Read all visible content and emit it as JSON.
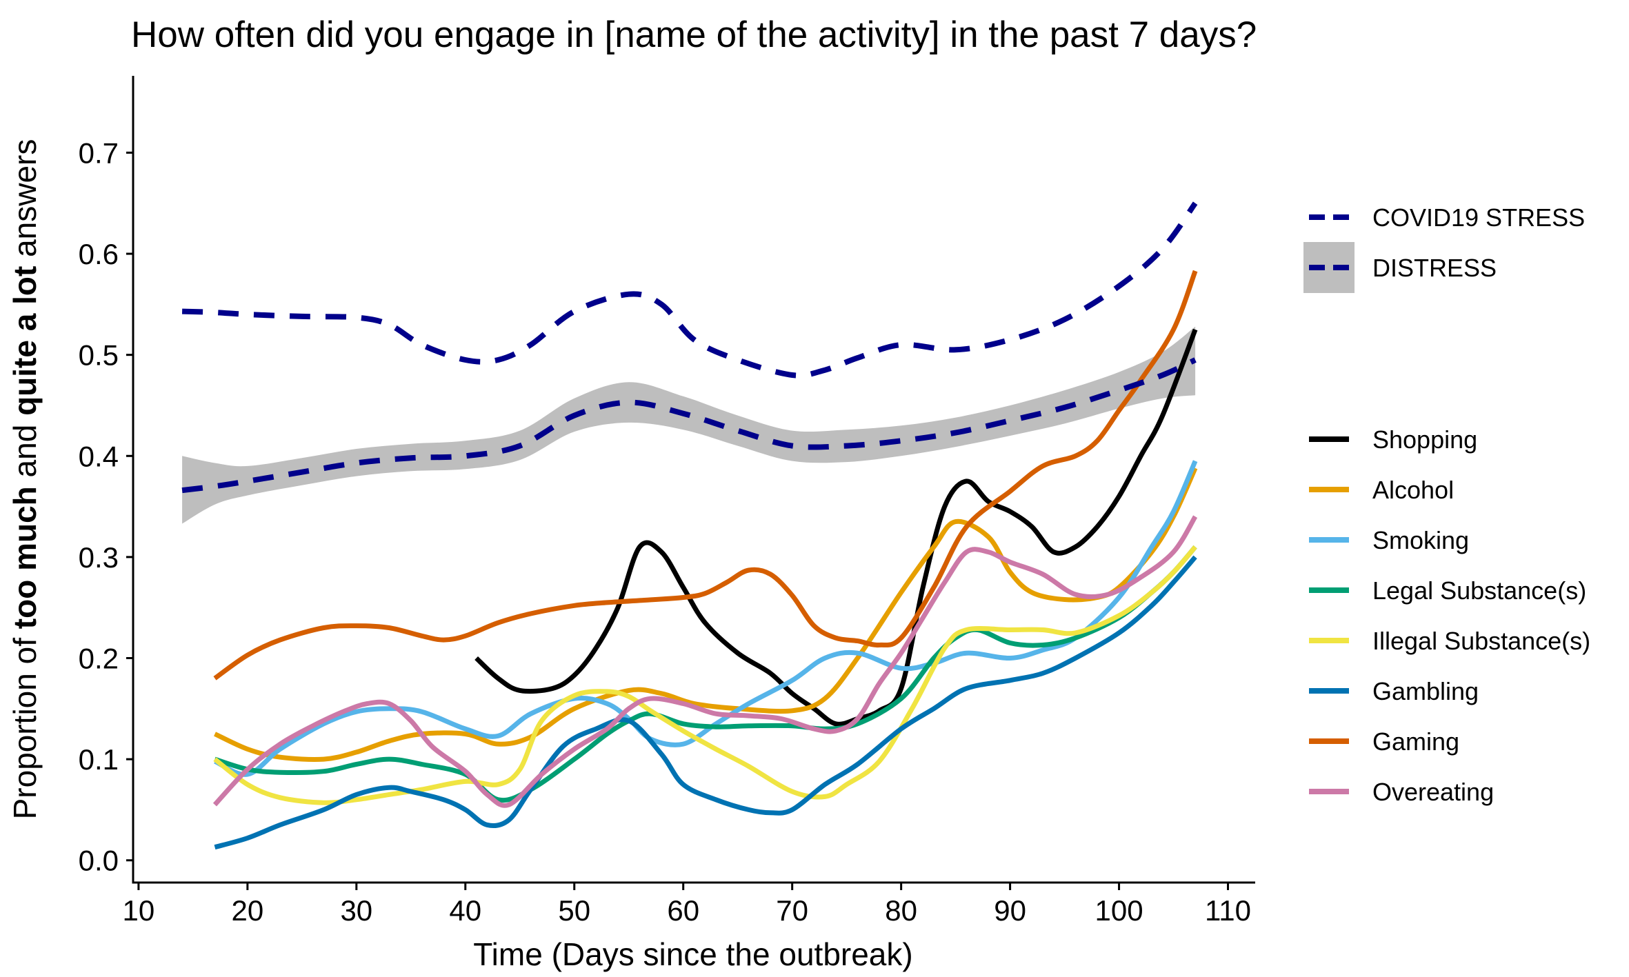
{
  "chart_data": {
    "type": "line",
    "title": "How often did you engage in [name of the activity] in the past 7 days?",
    "xlabel": "Time (Days since the outbreak)",
    "ylabel": {
      "prefix": "Proportion of ",
      "bold1": "too much",
      "mid": " and ",
      "bold2": "quite a lot",
      "suffix": " answers"
    },
    "xlim": [
      9.5,
      112.5
    ],
    "ylim": [
      -0.022,
      0.776
    ],
    "x_ticks": [
      10,
      20,
      30,
      40,
      50,
      60,
      70,
      80,
      90,
      100,
      110
    ],
    "y_ticks": [
      0.0,
      0.1,
      0.2,
      0.3,
      0.4,
      0.5,
      0.6,
      0.7
    ],
    "y_tick_labels": [
      "0.0",
      "0.1",
      "0.2",
      "0.3",
      "0.4",
      "0.5",
      "0.6",
      "0.7"
    ],
    "grid": false,
    "legend_position": "right",
    "reference_lines": [
      {
        "name": "COVID19 STRESS",
        "color": "#00008B",
        "style": "dashed",
        "x": [
          14,
          17,
          20,
          25,
          30,
          33,
          36,
          40,
          43,
          46,
          50,
          55,
          58,
          61,
          65,
          70,
          73,
          76,
          80,
          85,
          90,
          95,
          100,
          104,
          107
        ],
        "y": [
          0.543,
          0.542,
          0.54,
          0.538,
          0.537,
          0.53,
          0.51,
          0.495,
          0.495,
          0.51,
          0.543,
          0.56,
          0.55,
          0.515,
          0.495,
          0.48,
          0.485,
          0.497,
          0.51,
          0.505,
          0.515,
          0.535,
          0.568,
          0.605,
          0.65
        ]
      },
      {
        "name": "DISTRESS",
        "color": "#00008B",
        "style": "dashed",
        "band_color": "#BEBEBE",
        "x": [
          14,
          17,
          20,
          25,
          30,
          35,
          40,
          45,
          50,
          55,
          60,
          65,
          70,
          75,
          80,
          85,
          90,
          95,
          100,
          104,
          107
        ],
        "y": [
          0.366,
          0.37,
          0.375,
          0.384,
          0.393,
          0.398,
          0.4,
          0.41,
          0.44,
          0.453,
          0.442,
          0.425,
          0.41,
          0.41,
          0.415,
          0.423,
          0.435,
          0.448,
          0.465,
          0.48,
          0.495
        ],
        "lower": [
          0.333,
          0.352,
          0.361,
          0.371,
          0.38,
          0.385,
          0.387,
          0.396,
          0.424,
          0.433,
          0.426,
          0.41,
          0.395,
          0.394,
          0.4,
          0.409,
          0.42,
          0.432,
          0.447,
          0.457,
          0.46
        ],
        "upper": [
          0.4,
          0.393,
          0.39,
          0.398,
          0.407,
          0.412,
          0.415,
          0.425,
          0.457,
          0.473,
          0.459,
          0.44,
          0.425,
          0.426,
          0.43,
          0.438,
          0.45,
          0.465,
          0.483,
          0.503,
          0.528
        ]
      }
    ],
    "series": [
      {
        "name": "Shopping",
        "color": "#000000",
        "x": [
          41,
          43,
          45,
          48,
          50,
          52,
          54,
          56,
          58,
          60,
          62,
          65,
          68,
          70,
          72,
          74,
          76,
          78,
          80,
          82,
          84,
          86,
          88,
          90,
          92,
          94,
          96,
          98,
          100,
          102,
          104,
          107
        ],
        "y": [
          0.2,
          0.18,
          0.168,
          0.17,
          0.183,
          0.21,
          0.25,
          0.31,
          0.305,
          0.27,
          0.235,
          0.205,
          0.185,
          0.165,
          0.15,
          0.135,
          0.14,
          0.148,
          0.17,
          0.27,
          0.35,
          0.375,
          0.355,
          0.345,
          0.33,
          0.305,
          0.31,
          0.33,
          0.36,
          0.4,
          0.44,
          0.525
        ]
      },
      {
        "name": "Alcohol",
        "color": "#E69F00",
        "x": [
          17,
          20,
          23,
          27,
          30,
          33,
          36,
          40,
          43,
          46,
          50,
          55,
          58,
          61,
          65,
          70,
          73,
          76,
          80,
          83,
          85,
          88,
          90,
          92,
          95,
          98,
          100,
          103,
          105,
          107
        ],
        "y": [
          0.125,
          0.11,
          0.102,
          0.1,
          0.107,
          0.118,
          0.125,
          0.125,
          0.115,
          0.122,
          0.15,
          0.168,
          0.165,
          0.155,
          0.15,
          0.148,
          0.16,
          0.2,
          0.265,
          0.31,
          0.335,
          0.32,
          0.285,
          0.265,
          0.258,
          0.26,
          0.27,
          0.305,
          0.34,
          0.388
        ]
      },
      {
        "name": "Smoking",
        "color": "#56B4E9",
        "x": [
          17,
          20,
          23,
          27,
          30,
          33,
          36,
          40,
          43,
          46,
          50,
          53,
          55,
          57,
          60,
          63,
          66,
          70,
          73,
          76,
          80,
          83,
          86,
          90,
          93,
          96,
          100,
          103,
          105,
          107
        ],
        "y": [
          0.098,
          0.085,
          0.11,
          0.135,
          0.147,
          0.15,
          0.147,
          0.13,
          0.123,
          0.145,
          0.16,
          0.155,
          0.14,
          0.12,
          0.115,
          0.135,
          0.155,
          0.178,
          0.2,
          0.205,
          0.19,
          0.195,
          0.205,
          0.2,
          0.208,
          0.22,
          0.26,
          0.31,
          0.345,
          0.395
        ]
      },
      {
        "name": "Legal Substance(s)",
        "color": "#009E73",
        "x": [
          17,
          20,
          23,
          27,
          30,
          33,
          36,
          40,
          43,
          46,
          50,
          53,
          55,
          57,
          60,
          63,
          66,
          70,
          73,
          76,
          80,
          83,
          85,
          87,
          90,
          93,
          96,
          100,
          103,
          105,
          107
        ],
        "y": [
          0.1,
          0.09,
          0.087,
          0.088,
          0.095,
          0.1,
          0.095,
          0.085,
          0.06,
          0.07,
          0.1,
          0.125,
          0.138,
          0.145,
          0.135,
          0.132,
          0.133,
          0.133,
          0.13,
          0.135,
          0.16,
          0.2,
          0.22,
          0.228,
          0.215,
          0.213,
          0.22,
          0.24,
          0.265,
          0.285,
          0.31
        ]
      },
      {
        "name": "Illegal Substance(s)",
        "color": "#F0E442",
        "x": [
          17,
          20,
          23,
          27,
          30,
          33,
          36,
          40,
          43,
          45,
          47,
          50,
          53,
          55,
          57,
          60,
          63,
          66,
          70,
          73,
          75,
          78,
          81,
          84,
          86,
          90,
          93,
          96,
          100,
          103,
          105,
          107
        ],
        "y": [
          0.1,
          0.075,
          0.062,
          0.057,
          0.06,
          0.065,
          0.07,
          0.078,
          0.075,
          0.09,
          0.138,
          0.163,
          0.167,
          0.162,
          0.148,
          0.128,
          0.11,
          0.093,
          0.068,
          0.063,
          0.075,
          0.098,
          0.15,
          0.21,
          0.228,
          0.228,
          0.228,
          0.225,
          0.242,
          0.265,
          0.285,
          0.31
        ]
      },
      {
        "name": "Gambling",
        "color": "#0072B2",
        "x": [
          17,
          20,
          23,
          27,
          30,
          33,
          35,
          38,
          40,
          42,
          44,
          46,
          49,
          52,
          55,
          58,
          60,
          63,
          66,
          68,
          70,
          73,
          76,
          80,
          83,
          86,
          90,
          93,
          96,
          100,
          103,
          105,
          107
        ],
        "y": [
          0.013,
          0.022,
          0.035,
          0.05,
          0.065,
          0.072,
          0.068,
          0.06,
          0.05,
          0.035,
          0.04,
          0.07,
          0.113,
          0.13,
          0.138,
          0.105,
          0.075,
          0.06,
          0.05,
          0.047,
          0.05,
          0.075,
          0.095,
          0.13,
          0.15,
          0.17,
          0.178,
          0.185,
          0.2,
          0.225,
          0.252,
          0.275,
          0.3
        ]
      },
      {
        "name": "Gaming",
        "color": "#D55E00",
        "x": [
          17,
          20,
          23,
          27,
          30,
          33,
          36,
          38,
          40,
          43,
          46,
          50,
          53,
          56,
          60,
          62,
          64,
          66,
          68,
          70,
          72,
          74,
          76,
          78,
          80,
          83,
          86,
          90,
          93,
          96,
          98,
          100,
          102,
          105,
          107
        ],
        "y": [
          0.18,
          0.203,
          0.218,
          0.23,
          0.232,
          0.23,
          0.222,
          0.218,
          0.222,
          0.235,
          0.244,
          0.252,
          0.255,
          0.257,
          0.26,
          0.264,
          0.275,
          0.287,
          0.283,
          0.262,
          0.232,
          0.22,
          0.217,
          0.213,
          0.22,
          0.27,
          0.33,
          0.365,
          0.39,
          0.4,
          0.415,
          0.445,
          0.475,
          0.525,
          0.583
        ]
      },
      {
        "name": "Overeating",
        "color": "#CC79A7",
        "x": [
          17,
          20,
          23,
          26,
          29,
          31,
          33,
          35,
          37,
          40,
          42,
          44,
          47,
          50,
          53,
          55,
          57,
          60,
          63,
          66,
          69,
          72,
          74,
          76,
          78,
          80,
          82,
          84,
          86,
          88,
          90,
          93,
          96,
          99,
          102,
          105,
          107
        ],
        "y": [
          0.055,
          0.09,
          0.115,
          0.133,
          0.148,
          0.155,
          0.155,
          0.138,
          0.112,
          0.088,
          0.065,
          0.055,
          0.085,
          0.11,
          0.13,
          0.15,
          0.16,
          0.155,
          0.145,
          0.143,
          0.14,
          0.13,
          0.128,
          0.14,
          0.175,
          0.205,
          0.24,
          0.275,
          0.305,
          0.305,
          0.295,
          0.283,
          0.263,
          0.263,
          0.28,
          0.305,
          0.34
        ]
      }
    ]
  }
}
